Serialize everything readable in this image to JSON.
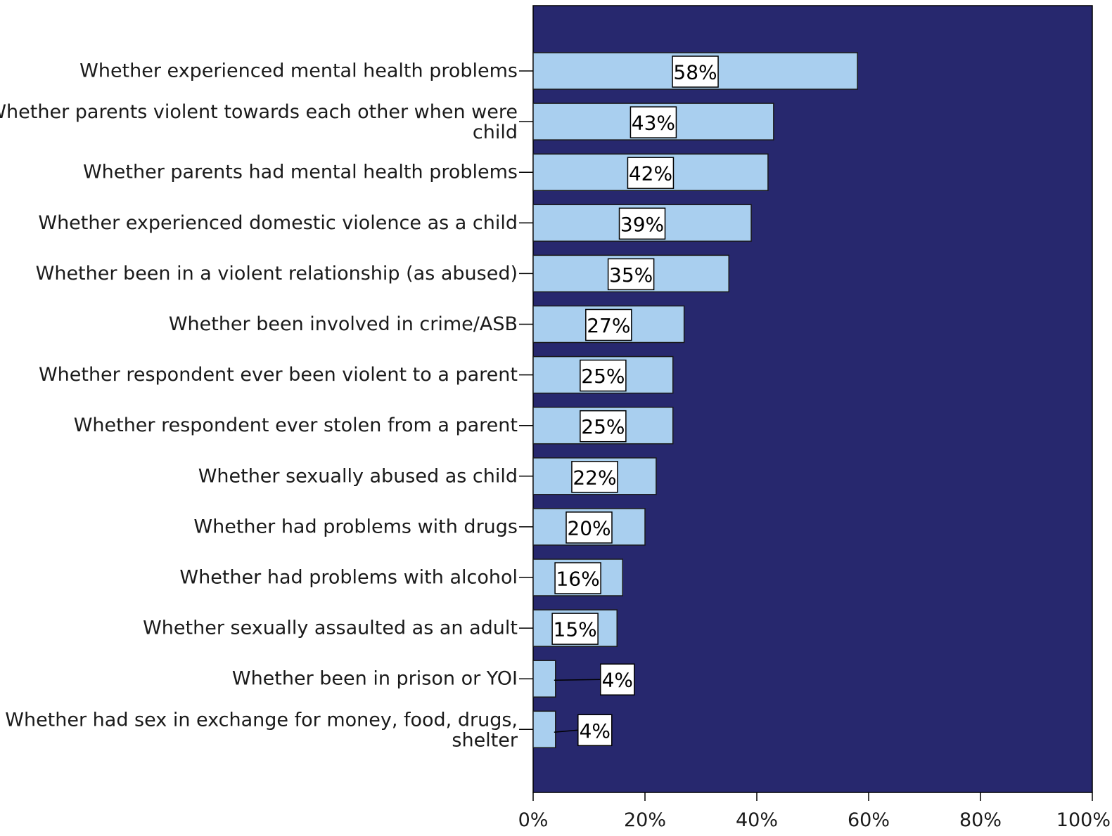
{
  "chart_data": {
    "type": "bar",
    "orientation": "horizontal",
    "title": "",
    "xlabel": "",
    "ylabel": "",
    "categories": [
      [
        "Whether experienced mental health problems"
      ],
      [
        "Whether parents violent towards each other when were",
        "child"
      ],
      [
        "Whether parents had mental health problems"
      ],
      [
        "Whether experienced domestic violence as a child"
      ],
      [
        "Whether been in a violent relationship (as abused)"
      ],
      [
        "Whether been involved in crime/ASB"
      ],
      [
        "Whether respondent ever been violent to a parent"
      ],
      [
        "Whether respondent ever stolen from a parent"
      ],
      [
        "Whether sexually abused as child"
      ],
      [
        "Whether had problems with drugs"
      ],
      [
        "Whether had problems with alcohol"
      ],
      [
        "Whether sexually assaulted as an adult"
      ],
      [
        "Whether been in prison or YOI"
      ],
      [
        "Whether had sex in exchange for money, food, drugs,",
        "shelter"
      ]
    ],
    "values": [
      58,
      43,
      42,
      39,
      35,
      27,
      25,
      25,
      22,
      20,
      16,
      15,
      4,
      4
    ],
    "data_labels": [
      "58%",
      "43%",
      "42%",
      "39%",
      "35%",
      "27%",
      "25%",
      "25%",
      "22%",
      "20%",
      "16%",
      "15%",
      "4%",
      "4%"
    ],
    "xlim": [
      0,
      100
    ],
    "xticks": [
      0,
      20,
      40,
      60,
      80,
      100
    ],
    "xtick_labels": [
      "0%",
      "20%",
      "40%",
      "60%",
      "80%",
      "100%"
    ],
    "grid": false,
    "legend": "none",
    "colors": {
      "plot_background": "#27286e",
      "bar_fill": "#a9cfef",
      "bar_stroke": "#1a1a1a",
      "label_box_fill": "#ffffff"
    }
  }
}
